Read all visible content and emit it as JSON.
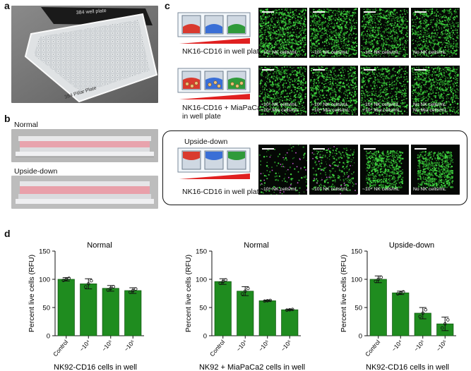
{
  "panels": {
    "a": {
      "label": "a",
      "plate_top_text": "384 well plate",
      "plate_bottom_text": "384 Pillar Plate"
    },
    "b": {
      "label": "b",
      "normal_label": "Normal",
      "upside_label": "Upside-down"
    },
    "c": {
      "label": "c",
      "rows": [
        {
          "label": "NK16-CD16 in well plate",
          "images": [
            {
              "caption": "~10⁶ NK cells/mL"
            },
            {
              "caption": "~10⁵ NK cells/mL"
            },
            {
              "caption": "~10⁴ NK cells/mL"
            },
            {
              "caption": "No NK cells/mL"
            }
          ]
        },
        {
          "label": "NK16-CD16 + MiaPaCa2\nin well plate",
          "images": [
            {
              "caption": "~10⁶ NK cells/mL\n+10⁴ Mia cells/mL"
            },
            {
              "caption": "~10⁵ NK cells/mL\n+10⁴ Mia cells/mL"
            },
            {
              "caption": "~10⁴ NK cells/mL\n+10⁴ Mia cells/mL"
            },
            {
              "caption": "No NK cells/mL\nNo Mia cells/mL"
            }
          ]
        },
        {
          "label": "NK16-CD16 in well plate",
          "box_title": "Upside-down",
          "images": [
            {
              "caption": "~10⁶ NK cells/mL"
            },
            {
              "caption": "~10⁵ NK cells/mL"
            },
            {
              "caption": "~10⁴ NK cells/mL"
            },
            {
              "caption": "No NK cells/mL"
            }
          ]
        }
      ]
    },
    "d": {
      "label": "d"
    }
  },
  "colors": {
    "bar": "#1f8c1f",
    "bar_edge": "#135a13",
    "cell_green": "#3fcf3f",
    "cell_magenta": "#c85ad0",
    "well_red": "#d93a2f",
    "well_blue": "#3a6fd6",
    "well_green": "#2f9a3a"
  },
  "chart_data": [
    {
      "type": "bar",
      "title": "Normal",
      "xlabel": "NK92-CD16 cells in well",
      "ylabel": "Percent live cells (RFU)",
      "categories": [
        "Control",
        "~10⁴",
        "~10⁵",
        "~10⁶"
      ],
      "values": [
        100,
        92,
        84,
        80
      ],
      "errors": [
        3,
        9,
        5,
        5
      ],
      "ylim": [
        0,
        150
      ],
      "yticks": [
        "0",
        "50",
        "100",
        "150"
      ]
    },
    {
      "type": "bar",
      "title": "Normal",
      "xlabel": "NK92 + MiaPaCa2 cells in well",
      "ylabel": "Percent live cells (RFU)",
      "categories": [
        "Control",
        "~10⁴",
        "~10⁵",
        "~10⁶"
      ],
      "values": [
        96,
        79,
        62,
        46
      ],
      "errors": [
        5,
        8,
        1,
        1
      ],
      "ylim": [
        0,
        150
      ],
      "yticks": [
        "0",
        "50",
        "100",
        "150"
      ]
    },
    {
      "type": "bar",
      "title": "Upside-down",
      "xlabel": "NK92-CD16 cells in well",
      "ylabel": "Percent live cells (RFU)",
      "categories": [
        "Control",
        "~10⁴",
        "~10⁵",
        "~10⁶"
      ],
      "values": [
        100,
        76,
        40,
        21
      ],
      "errors": [
        6,
        3,
        10,
        12
      ],
      "ylim": [
        0,
        150
      ],
      "yticks": [
        "0",
        "50",
        "100",
        "150"
      ]
    }
  ]
}
